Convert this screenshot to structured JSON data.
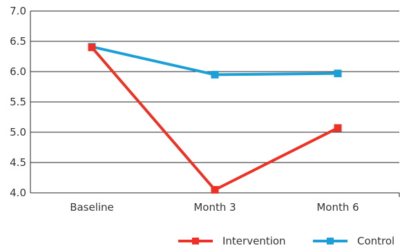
{
  "chart_data": {
    "type": "line",
    "title": "",
    "xlabel": "",
    "ylabel": "",
    "categories": [
      "Baseline",
      "Month 3",
      "Month 6"
    ],
    "ylim": [
      4.0,
      7.0
    ],
    "yticks": [
      "4.0",
      "4.5",
      "5.0",
      "5.5",
      "6.0",
      "6.5",
      "7.0"
    ],
    "grid": true,
    "legend_position": "bottom-right",
    "series": [
      {
        "name": "Intervention",
        "values": [
          6.4,
          4.05,
          5.07
        ],
        "color": "#ee3124",
        "marker": "square"
      },
      {
        "name": "Control",
        "values": [
          6.41,
          5.95,
          5.97
        ],
        "color": "#1a9fd9",
        "marker": "square"
      }
    ]
  }
}
